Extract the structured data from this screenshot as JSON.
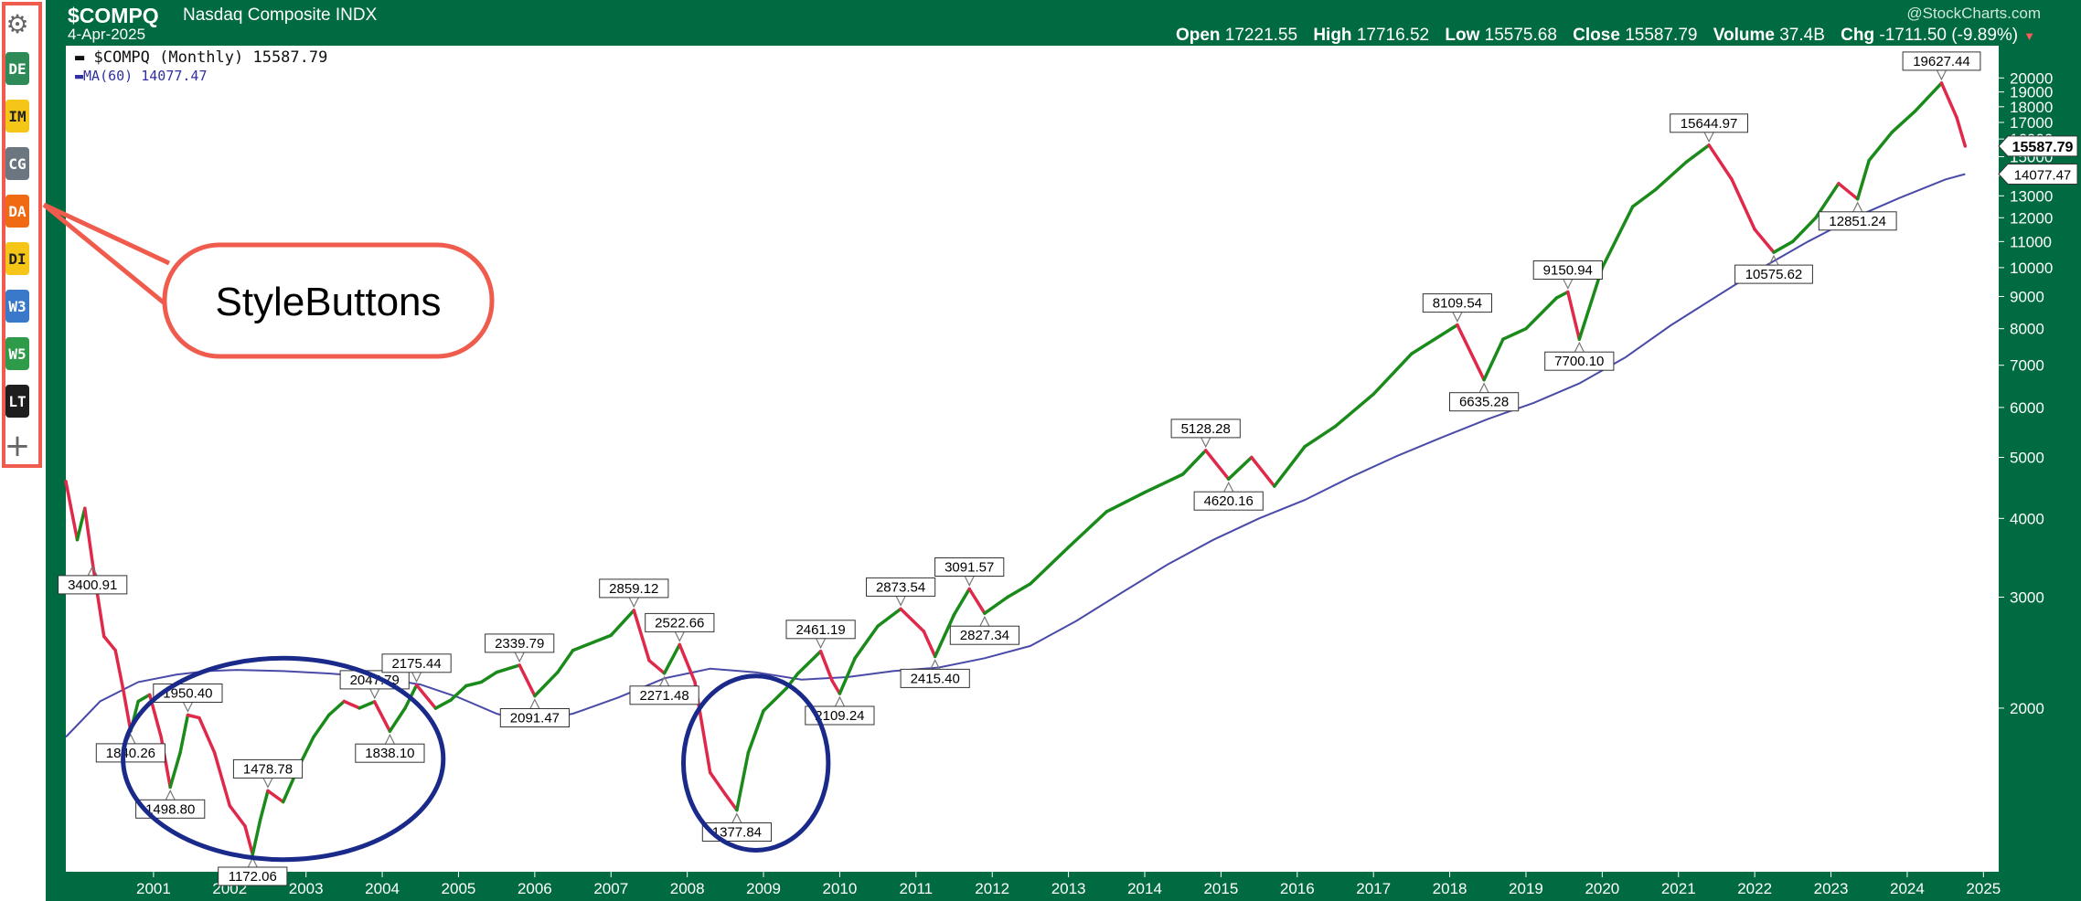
{
  "sidebar": {
    "gear_icon": "gear-icon",
    "buttons": [
      {
        "label": "DE",
        "color": "#2e8b57"
      },
      {
        "label": "IM",
        "color": "#f5c518"
      },
      {
        "label": "CG",
        "color": "#6b7680"
      },
      {
        "label": "DA",
        "color": "#ef6a12"
      },
      {
        "label": "DI",
        "color": "#f5c518"
      },
      {
        "label": "W3",
        "color": "#3a78c9"
      },
      {
        "label": "W5",
        "color": "#2e9b4a"
      },
      {
        "label": "LT",
        "color": "#1e1e1e"
      }
    ],
    "plus_icon": "plus-icon"
  },
  "callout": {
    "label": "StyleButtons",
    "color": "#ef5b4c"
  },
  "header": {
    "symbol": "$COMPQ",
    "name": "Nasdaq Composite INDX",
    "date": "4-Apr-2025",
    "watermark": "@StockCharts.com",
    "open_label": "Open",
    "open": "17221.55",
    "high_label": "High",
    "high": "17716.52",
    "low_label": "Low",
    "low": "15575.68",
    "close_label": "Close",
    "close": "15587.79",
    "volume_label": "Volume",
    "volume": "37.4B",
    "chg_label": "Chg",
    "chg": "-1711.50 (-9.89%)"
  },
  "legend": {
    "price": "$COMPQ (Monthly) 15587.79",
    "ma": "MA(60) 14077.47"
  },
  "colors": {
    "frame": "#006a40",
    "up": "#1a8a1a",
    "down": "#e0294a",
    "ma": "#4a4aa8",
    "circle": "#1a2a8a"
  },
  "chart_data": {
    "type": "line",
    "scale": "log",
    "x_ticks": [
      "2001",
      "2002",
      "2003",
      "2004",
      "2005",
      "2006",
      "2007",
      "2008",
      "2009",
      "2010",
      "2011",
      "2012",
      "2013",
      "2014",
      "2015",
      "2016",
      "2017",
      "2018",
      "2019",
      "2020",
      "2021",
      "2022",
      "2023",
      "2024",
      "2025"
    ],
    "y_ticks": [
      "2000",
      "3000",
      "4000",
      "5000",
      "6000",
      "7000",
      "8000",
      "9000",
      "10000",
      "11000",
      "12000",
      "13000",
      "14000",
      "15000",
      "16000",
      "17000",
      "18000",
      "19000",
      "20000"
    ],
    "ylim": [
      1100,
      22500
    ],
    "xlim": [
      2000.35,
      2025.7
    ],
    "price_series": [
      [
        2000.35,
        4580
      ],
      [
        2000.5,
        3700
      ],
      [
        2000.6,
        4150
      ],
      [
        2000.7,
        3400.91
      ],
      [
        2000.85,
        2600
      ],
      [
        2001.0,
        2470
      ],
      [
        2001.1,
        2150
      ],
      [
        2001.2,
        1840.26
      ],
      [
        2001.3,
        2050
      ],
      [
        2001.45,
        2100
      ],
      [
        2001.6,
        1800
      ],
      [
        2001.72,
        1498.8
      ],
      [
        2001.85,
        1700
      ],
      [
        2001.95,
        1950.4
      ],
      [
        2002.1,
        1930
      ],
      [
        2002.3,
        1700
      ],
      [
        2002.5,
        1400
      ],
      [
        2002.7,
        1300
      ],
      [
        2002.8,
        1172.06
      ],
      [
        2002.9,
        1330
      ],
      [
        2003.0,
        1478.78
      ],
      [
        2003.2,
        1420
      ],
      [
        2003.4,
        1610
      ],
      [
        2003.6,
        1800
      ],
      [
        2003.8,
        1950
      ],
      [
        2004.0,
        2050
      ],
      [
        2004.2,
        2000
      ],
      [
        2004.4,
        2047.79
      ],
      [
        2004.6,
        1838.1
      ],
      [
        2004.8,
        2000
      ],
      [
        2004.95,
        2175.44
      ],
      [
        2005.2,
        1999
      ],
      [
        2005.4,
        2060
      ],
      [
        2005.6,
        2170
      ],
      [
        2005.8,
        2200
      ],
      [
        2006.0,
        2280
      ],
      [
        2006.3,
        2339.79
      ],
      [
        2006.5,
        2091.47
      ],
      [
        2006.8,
        2280
      ],
      [
        2007.0,
        2470
      ],
      [
        2007.5,
        2610
      ],
      [
        2007.8,
        2859.12
      ],
      [
        2008.0,
        2380
      ],
      [
        2008.2,
        2271.48
      ],
      [
        2008.4,
        2522.66
      ],
      [
        2008.6,
        2200
      ],
      [
        2008.8,
        1580
      ],
      [
        2009.0,
        1460
      ],
      [
        2009.15,
        1377.84
      ],
      [
        2009.3,
        1700
      ],
      [
        2009.5,
        1980
      ],
      [
        2009.8,
        2150
      ],
      [
        2009.95,
        2269
      ],
      [
        2010.25,
        2461.19
      ],
      [
        2010.4,
        2210
      ],
      [
        2010.5,
        2109.24
      ],
      [
        2010.7,
        2400
      ],
      [
        2011.0,
        2700
      ],
      [
        2011.3,
        2873.54
      ],
      [
        2011.6,
        2650
      ],
      [
        2011.75,
        2415.4
      ],
      [
        2012.0,
        2815
      ],
      [
        2012.2,
        3091.57
      ],
      [
        2012.4,
        2827.34
      ],
      [
        2012.7,
        3000
      ],
      [
        2013.0,
        3150
      ],
      [
        2013.5,
        3600
      ],
      [
        2014.0,
        4100
      ],
      [
        2014.5,
        4400
      ],
      [
        2015.0,
        4700
      ],
      [
        2015.3,
        5128.28
      ],
      [
        2015.6,
        4620.16
      ],
      [
        2015.9,
        5000
      ],
      [
        2016.2,
        4500
      ],
      [
        2016.6,
        5200
      ],
      [
        2017.0,
        5600
      ],
      [
        2017.5,
        6300
      ],
      [
        2018.0,
        7300
      ],
      [
        2018.6,
        8109.54
      ],
      [
        2018.95,
        6635.28
      ],
      [
        2019.2,
        7700
      ],
      [
        2019.5,
        8000
      ],
      [
        2019.9,
        8950
      ],
      [
        2020.05,
        9150.94
      ],
      [
        2020.2,
        7700.1
      ],
      [
        2020.5,
        10000
      ],
      [
        2020.9,
        12500
      ],
      [
        2021.2,
        13300
      ],
      [
        2021.6,
        14700
      ],
      [
        2021.9,
        15644.97
      ],
      [
        2022.2,
        13800
      ],
      [
        2022.5,
        11500
      ],
      [
        2022.75,
        10575.62
      ],
      [
        2023.0,
        11000
      ],
      [
        2023.3,
        12000
      ],
      [
        2023.6,
        13600
      ],
      [
        2023.85,
        12851.24
      ],
      [
        2024.0,
        14800
      ],
      [
        2024.3,
        16400
      ],
      [
        2024.6,
        17700
      ],
      [
        2024.95,
        19627.44
      ],
      [
        2025.15,
        17300
      ],
      [
        2025.26,
        15587.79
      ]
    ],
    "ma_series": [
      [
        2000.35,
        1800
      ],
      [
        2000.8,
        2050
      ],
      [
        2001.3,
        2200
      ],
      [
        2001.8,
        2260
      ],
      [
        2002.2,
        2290
      ],
      [
        2002.6,
        2300
      ],
      [
        2003.2,
        2290
      ],
      [
        2003.8,
        2270
      ],
      [
        2004.4,
        2240
      ],
      [
        2005.0,
        2180
      ],
      [
        2005.5,
        2080
      ],
      [
        2006.0,
        1960
      ],
      [
        2006.4,
        1900
      ],
      [
        2007.0,
        1960
      ],
      [
        2007.6,
        2080
      ],
      [
        2008.2,
        2230
      ],
      [
        2008.8,
        2310
      ],
      [
        2009.4,
        2280
      ],
      [
        2010.0,
        2220
      ],
      [
        2010.6,
        2240
      ],
      [
        2011.2,
        2290
      ],
      [
        2011.8,
        2320
      ],
      [
        2012.4,
        2400
      ],
      [
        2013.0,
        2510
      ],
      [
        2013.6,
        2750
      ],
      [
        2014.2,
        3050
      ],
      [
        2014.8,
        3380
      ],
      [
        2015.4,
        3700
      ],
      [
        2016.0,
        4000
      ],
      [
        2016.6,
        4280
      ],
      [
        2017.2,
        4650
      ],
      [
        2017.8,
        5020
      ],
      [
        2018.4,
        5380
      ],
      [
        2019.0,
        5750
      ],
      [
        2019.6,
        6100
      ],
      [
        2020.2,
        6550
      ],
      [
        2020.8,
        7200
      ],
      [
        2021.4,
        8100
      ],
      [
        2022.0,
        9000
      ],
      [
        2022.6,
        10000
      ],
      [
        2023.2,
        11000
      ],
      [
        2023.8,
        12000
      ],
      [
        2024.4,
        12900
      ],
      [
        2025.0,
        13800
      ],
      [
        2025.26,
        14077.47
      ]
    ],
    "annotations": [
      {
        "x": 2000.7,
        "y": 3400.91,
        "label": "3400.91",
        "pos": "below"
      },
      {
        "x": 2001.2,
        "y": 1840.26,
        "label": "1840.26",
        "pos": "below"
      },
      {
        "x": 2001.72,
        "y": 1498.8,
        "label": "1498.80",
        "pos": "below"
      },
      {
        "x": 2001.95,
        "y": 1950.4,
        "label": "1950.40",
        "pos": "above"
      },
      {
        "x": 2002.8,
        "y": 1172.06,
        "label": "1172.06",
        "pos": "below"
      },
      {
        "x": 2003.0,
        "y": 1478.78,
        "label": "1478.78",
        "pos": "above"
      },
      {
        "x": 2004.4,
        "y": 2047.79,
        "label": "2047.79",
        "pos": "above"
      },
      {
        "x": 2004.6,
        "y": 1838.1,
        "label": "1838.10",
        "pos": "below"
      },
      {
        "x": 2004.95,
        "y": 2175.44,
        "label": "2175.44",
        "pos": "above"
      },
      {
        "x": 2006.3,
        "y": 2339.79,
        "label": "2339.79",
        "pos": "above"
      },
      {
        "x": 2006.5,
        "y": 2091.47,
        "label": "2091.47",
        "pos": "below"
      },
      {
        "x": 2007.8,
        "y": 2859.12,
        "label": "2859.12",
        "pos": "above"
      },
      {
        "x": 2008.2,
        "y": 2271.48,
        "label": "2271.48",
        "pos": "below"
      },
      {
        "x": 2008.4,
        "y": 2522.66,
        "label": "2522.66",
        "pos": "above"
      },
      {
        "x": 2009.15,
        "y": 1377.84,
        "label": "1377.84",
        "pos": "below"
      },
      {
        "x": 2010.25,
        "y": 2461.19,
        "label": "2461.19",
        "pos": "above"
      },
      {
        "x": 2010.5,
        "y": 2109.24,
        "label": "2109.24",
        "pos": "below"
      },
      {
        "x": 2011.3,
        "y": 2873.54,
        "label": "2873.54",
        "pos": "above"
      },
      {
        "x": 2011.75,
        "y": 2415.4,
        "label": "2415.40",
        "pos": "below"
      },
      {
        "x": 2012.2,
        "y": 3091.57,
        "label": "3091.57",
        "pos": "above"
      },
      {
        "x": 2012.4,
        "y": 2827.34,
        "label": "2827.34",
        "pos": "below"
      },
      {
        "x": 2015.3,
        "y": 5128.28,
        "label": "5128.28",
        "pos": "above"
      },
      {
        "x": 2015.6,
        "y": 4620.16,
        "label": "4620.16",
        "pos": "below"
      },
      {
        "x": 2018.6,
        "y": 8109.54,
        "label": "8109.54",
        "pos": "above"
      },
      {
        "x": 2018.95,
        "y": 6635.28,
        "label": "6635.28",
        "pos": "below"
      },
      {
        "x": 2020.05,
        "y": 9150.94,
        "label": "9150.94",
        "pos": "above"
      },
      {
        "x": 2020.2,
        "y": 7700.1,
        "label": "7700.10",
        "pos": "below"
      },
      {
        "x": 2021.9,
        "y": 15644.97,
        "label": "15644.97",
        "pos": "above"
      },
      {
        "x": 2022.75,
        "y": 10575.62,
        "label": "10575.62",
        "pos": "below"
      },
      {
        "x": 2023.85,
        "y": 12851.24,
        "label": "12851.24",
        "pos": "below"
      },
      {
        "x": 2024.95,
        "y": 19627.44,
        "label": "19627.44",
        "pos": "above"
      }
    ],
    "last_price_label": "15587.79",
    "last_ma_label": "14077.47",
    "circles": [
      {
        "cx": 2003.2,
        "cy": 1650,
        "rx": 2.1,
        "ry_top": 2400,
        "ry_bottom": 1150
      },
      {
        "cx": 2009.4,
        "cy": 1650,
        "rx": 0.95,
        "ry_top": 2250,
        "ry_bottom": 1190
      }
    ]
  }
}
